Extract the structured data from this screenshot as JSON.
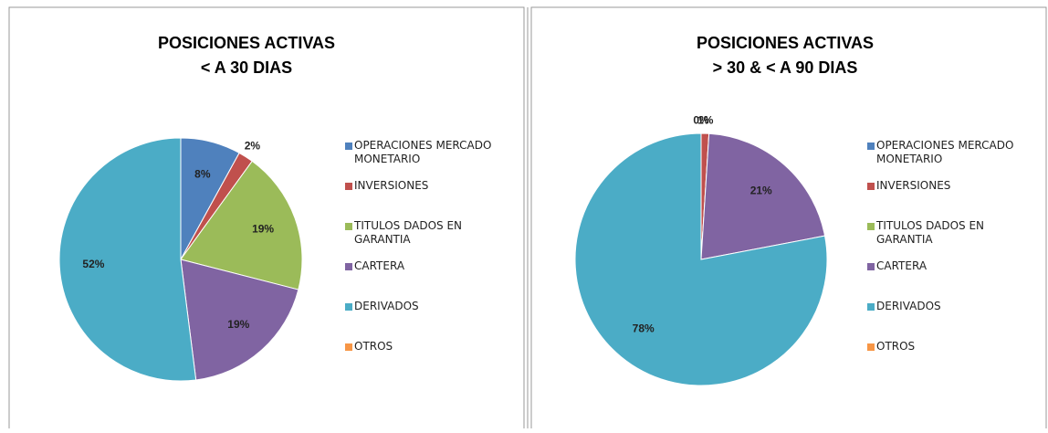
{
  "chart_data": [
    {
      "type": "pie",
      "title": "POSICIONES ACTIVAS",
      "subtitle": "< A 30 DIAS",
      "categories": [
        "OPERACIONES MERCADO MONETARIO",
        "INVERSIONES",
        "TITULOS DADOS EN GARANTIA",
        "CARTERA",
        "DERIVADOS",
        "OTROS"
      ],
      "values": [
        8,
        2,
        19,
        19,
        52,
        0
      ],
      "value_labels": [
        "8%",
        "2%",
        "19%",
        "19%",
        "52%",
        null
      ],
      "colors": [
        "#4f81bd",
        "#c0504d",
        "#9bbb59",
        "#8064a2",
        "#4bacc6",
        "#f79646"
      ]
    },
    {
      "type": "pie",
      "title": "POSICIONES ACTIVAS",
      "subtitle": "> 30 & < A 90 DIAS",
      "categories": [
        "OPERACIONES MERCADO MONETARIO",
        "INVERSIONES",
        "TITULOS DADOS EN GARANTIA",
        "CARTERA",
        "DERIVADOS",
        "OTROS"
      ],
      "values": [
        0,
        1,
        0,
        21,
        78,
        0
      ],
      "value_labels": [
        "0%",
        "1%",
        null,
        "21%",
        "78%",
        null
      ],
      "colors": [
        "#4f81bd",
        "#c0504d",
        "#9bbb59",
        "#8064a2",
        "#4bacc6",
        "#f79646"
      ]
    }
  ]
}
